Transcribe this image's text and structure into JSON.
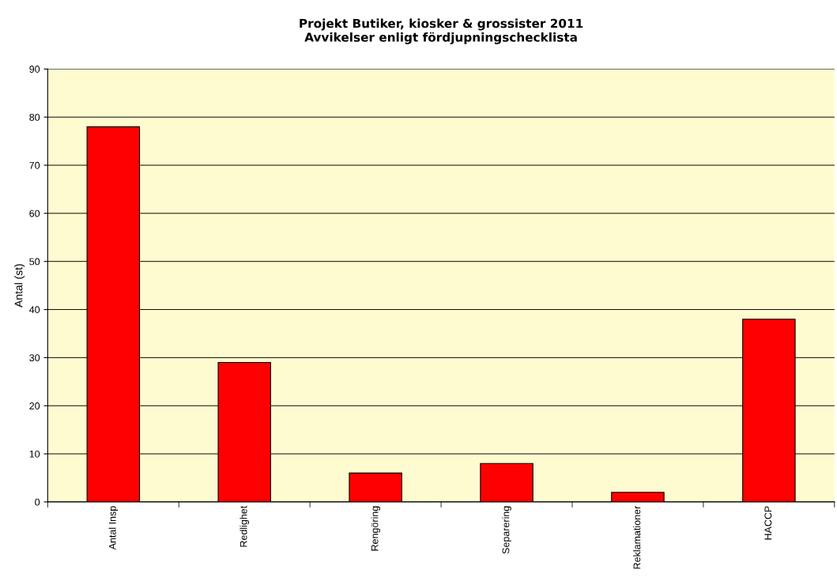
{
  "chart_data": {
    "type": "bar",
    "title": "Projekt Butiker, kiosker & grossister 2011\nAvvikelser enligt fördjupningschecklista",
    "ylabel": "Antal (st)",
    "categories": [
      "Antal Insp",
      "Redlighet",
      "Rengöring",
      "Separering",
      "Reklamationer",
      "HACCP"
    ],
    "values": [
      78,
      29,
      6,
      8,
      2,
      38
    ],
    "color": "#ff0000",
    "ylim": [
      0,
      90
    ],
    "yticks": [
      0,
      10,
      20,
      30,
      40,
      50,
      60,
      70,
      80,
      90
    ],
    "grid": "y",
    "legend": false
  }
}
